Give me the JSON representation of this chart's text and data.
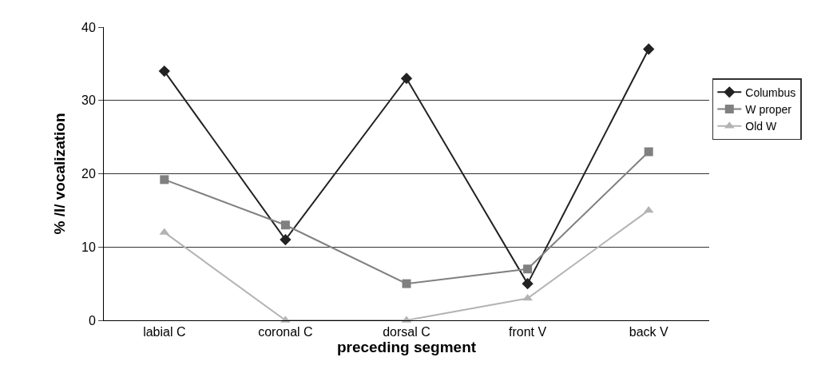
{
  "chart_data": {
    "type": "line",
    "xlabel": "preceding segment",
    "ylabel": "% /l/ vocalization",
    "categories": [
      "labial C",
      "coronal C",
      "dorsal C",
      "front V",
      "back V"
    ],
    "series": [
      {
        "name": "Columbus",
        "color": "#222222",
        "marker": "diamond",
        "values": [
          34,
          11,
          33,
          5,
          37
        ]
      },
      {
        "name": "W proper",
        "color": "#808080",
        "marker": "square",
        "values": [
          19.2,
          13,
          5,
          7,
          23
        ]
      },
      {
        "name": "Old W",
        "color": "#b3b3b3",
        "marker": "triangle",
        "values": [
          12,
          0,
          0,
          3,
          15
        ]
      }
    ],
    "ylim": [
      0,
      40
    ],
    "yticks": [
      0,
      10,
      20,
      30,
      40
    ],
    "grid": "y",
    "legend": "right",
    "line_style": "solid"
  }
}
